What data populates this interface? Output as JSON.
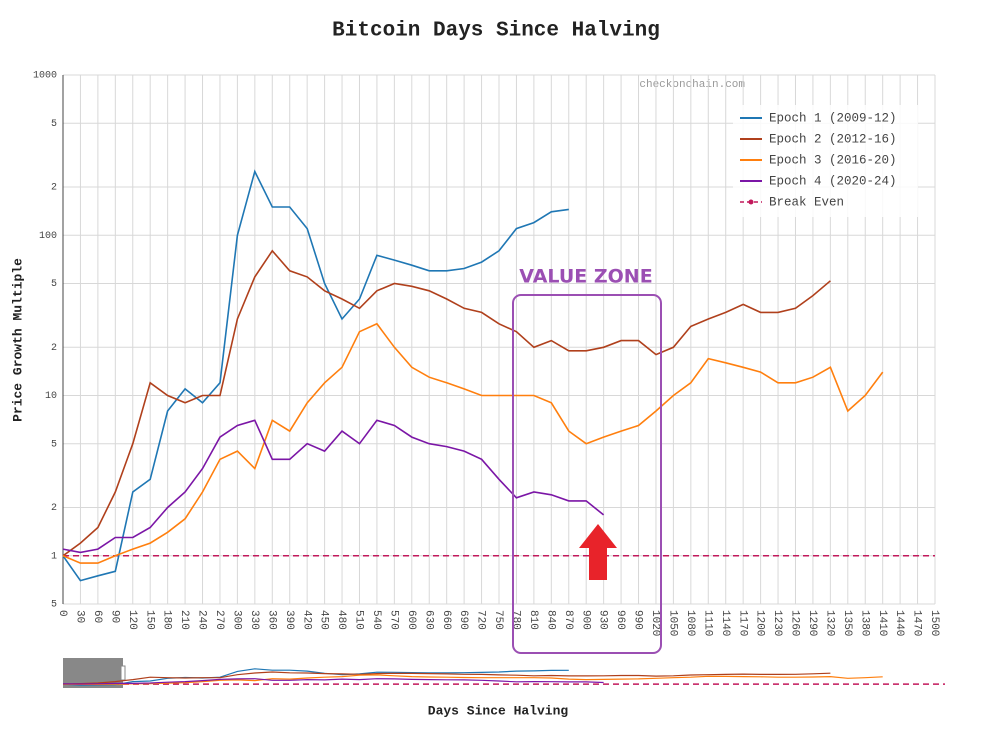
{
  "chart_data": {
    "type": "line",
    "title": "Bitcoin Days Since Halving",
    "x_label": "Days Since Halving",
    "y_label": "Price Growth Multiple",
    "watermark": "checkonchain.com",
    "annotation": "VALUE ZONE",
    "log_y": true,
    "grid": true,
    "x": [
      0,
      30,
      60,
      90,
      120,
      150,
      180,
      210,
      240,
      270,
      300,
      330,
      360,
      390,
      420,
      450,
      480,
      510,
      540,
      570,
      600,
      630,
      660,
      690,
      720,
      750,
      780,
      810,
      840,
      870,
      900,
      930,
      960,
      990,
      1020,
      1050,
      1080,
      1110,
      1140,
      1170,
      1200,
      1230,
      1260,
      1290,
      1320,
      1350,
      1380,
      1410
    ],
    "series": [
      {
        "name": "Epoch 1 (2009-12)",
        "color": "#1f77b4",
        "values": [
          1,
          0.7,
          0.75,
          0.8,
          2.5,
          3,
          8,
          11,
          9,
          12,
          100,
          250,
          150,
          150,
          110,
          50,
          30,
          40,
          75,
          70,
          65,
          60,
          60,
          62,
          68,
          80,
          110,
          120,
          140,
          145,
          null,
          null,
          null,
          null,
          null,
          null,
          null,
          null,
          null,
          null,
          null,
          null,
          null,
          null,
          null,
          null,
          null,
          null
        ]
      },
      {
        "name": "Epoch 2 (2012-16)",
        "color": "#b0401c",
        "values": [
          1,
          1.2,
          1.5,
          2.5,
          5,
          12,
          10,
          9,
          10,
          10,
          30,
          55,
          80,
          60,
          55,
          45,
          40,
          35,
          45,
          50,
          48,
          45,
          40,
          35,
          33,
          28,
          25,
          20,
          22,
          19,
          19,
          20,
          22,
          22,
          18,
          20,
          27,
          30,
          33,
          37,
          33,
          33,
          35,
          42,
          52,
          null,
          null,
          null
        ]
      },
      {
        "name": "Epoch 3 (2016-20)",
        "color": "#ff7f0e",
        "values": [
          1,
          0.9,
          0.9,
          1,
          1.1,
          1.2,
          1.4,
          1.7,
          2.5,
          4,
          4.5,
          3.5,
          7,
          6,
          9,
          12,
          15,
          25,
          28,
          20,
          15,
          13,
          12,
          11,
          10,
          10,
          10,
          10,
          9,
          6,
          5,
          5.5,
          6,
          6.5,
          8,
          10,
          12,
          17,
          16,
          15,
          14,
          12,
          12,
          13,
          15,
          8,
          10,
          14
        ]
      },
      {
        "name": "Epoch 4 (2020-24)",
        "color": "#7b16a6",
        "values": [
          1.1,
          1.05,
          1.1,
          1.3,
          1.3,
          1.5,
          2,
          2.5,
          3.5,
          5.5,
          6.5,
          7,
          4,
          4,
          5,
          4.5,
          6,
          5,
          7,
          6.5,
          5.5,
          5,
          4.8,
          4.5,
          4,
          3,
          2.3,
          2.5,
          2.4,
          2.2,
          2.2,
          1.8,
          null,
          null,
          null,
          null,
          null,
          null,
          null,
          null,
          null,
          null,
          null,
          null,
          null,
          null,
          null,
          null
        ]
      }
    ],
    "reference_line": {
      "name": "Break Even",
      "value": 1,
      "color": "#c2185b"
    },
    "xlim": [
      0,
      1500
    ],
    "xticks": [
      0,
      30,
      60,
      90,
      120,
      150,
      180,
      210,
      240,
      270,
      300,
      330,
      360,
      390,
      420,
      450,
      480,
      510,
      540,
      570,
      600,
      630,
      660,
      690,
      720,
      750,
      780,
      810,
      840,
      870,
      900,
      930,
      960,
      990,
      1020,
      1050,
      1080,
      1110,
      1140,
      1170,
      1200,
      1230,
      1260,
      1290,
      1320,
      1350,
      1380,
      1410,
      1440,
      1470,
      1500
    ],
    "ylim": [
      0.5,
      1000
    ],
    "yticks": [
      {
        "value": 0.5,
        "label": "5"
      },
      1,
      2,
      5,
      10,
      {
        "value": 20,
        "label": "2"
      },
      {
        "value": 50,
        "label": "5"
      },
      100,
      {
        "value": 200,
        "label": "2"
      },
      {
        "value": 500,
        "label": "5"
      },
      1000
    ]
  }
}
